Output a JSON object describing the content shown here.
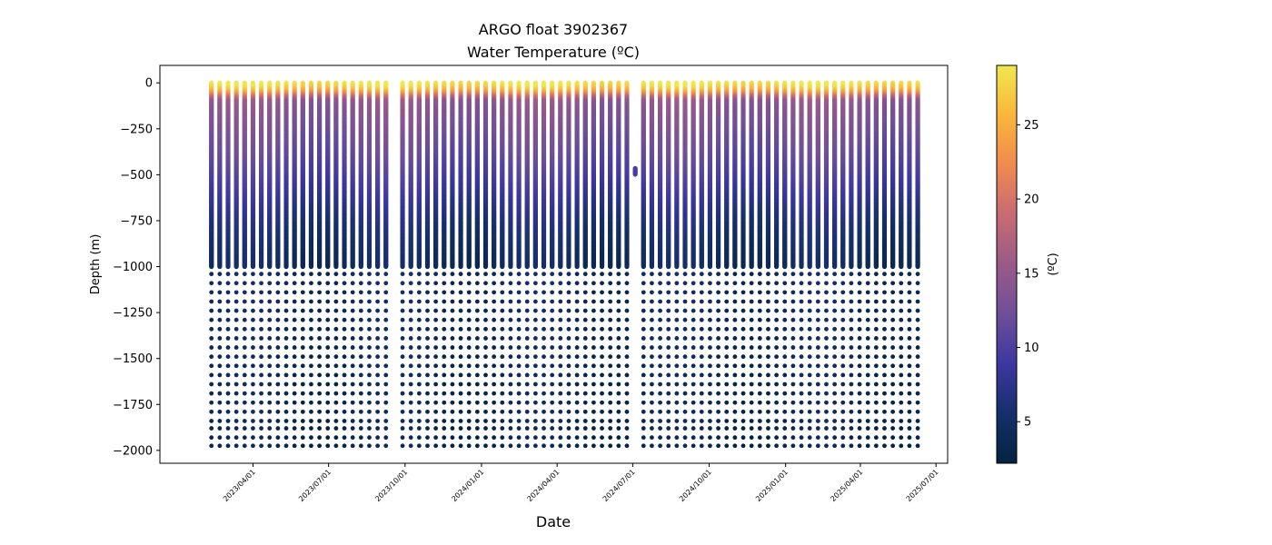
{
  "chart_data": {
    "type": "scatter",
    "title": "ARGO float 3902367",
    "subtitle": "Water Temperature (ºC)",
    "xlabel": "Date",
    "ylabel": "Depth (m)",
    "colorbar_label": "(ºC)",
    "x_range": [
      "2022-12-10",
      "2025-07-15"
    ],
    "ylim": [
      -2070,
      95
    ],
    "x_ticks": [
      "2023/04/01",
      "2023/07/01",
      "2023/10/01",
      "2024/01/01",
      "2024/04/01",
      "2024/07/01",
      "2024/10/01",
      "2025/01/01",
      "2025/04/01",
      "2025/07/01"
    ],
    "y_ticks": [
      0,
      -250,
      -500,
      -750,
      -1000,
      -1250,
      -1500,
      -1750,
      -2000
    ],
    "colorbar": {
      "range": [
        2.2,
        29
      ],
      "ticks": [
        5,
        10,
        15,
        20,
        25
      ],
      "colormap": "thermal",
      "stops": [
        "#04233f",
        "#162f6c",
        "#3d37a0",
        "#6e4f99",
        "#9a5a88",
        "#c76b73",
        "#f08a4f",
        "#f9b63b",
        "#f0e74f"
      ]
    },
    "profiles": {
      "first_date": "2023-02-10",
      "last_date": "2025-06-10",
      "interval_days": 10,
      "gap": [
        "2023-09-09",
        "2023-09-19"
      ],
      "shallow_only_profile": {
        "date": "2024-07-01",
        "depths": [
          -465,
          -500
        ]
      },
      "upper_depths_m": [
        0,
        -1000
      ],
      "deep_depths_m": [
        -1040,
        -1090,
        -1140,
        -1190,
        -1240,
        -1290,
        -1340,
        -1390,
        -1440,
        -1490,
        -1540,
        -1590,
        -1640,
        -1690,
        -1740,
        -1790,
        -1840,
        -1880,
        -1930,
        -1975
      ],
      "temperature_profile": {
        "depth_m": [
          0,
          -20,
          -40,
          -60,
          -80,
          -100,
          -150,
          -200,
          -300,
          -400,
          -500,
          -600,
          -700,
          -800,
          -900,
          -1000,
          -1500,
          -2000
        ],
        "temperature_c": [
          28.5,
          27.5,
          25.5,
          22,
          18,
          14.5,
          13.5,
          13,
          11.8,
          10.8,
          9.5,
          8,
          6.5,
          5.3,
          4.5,
          3.9,
          3.2,
          2.6
        ]
      }
    }
  }
}
